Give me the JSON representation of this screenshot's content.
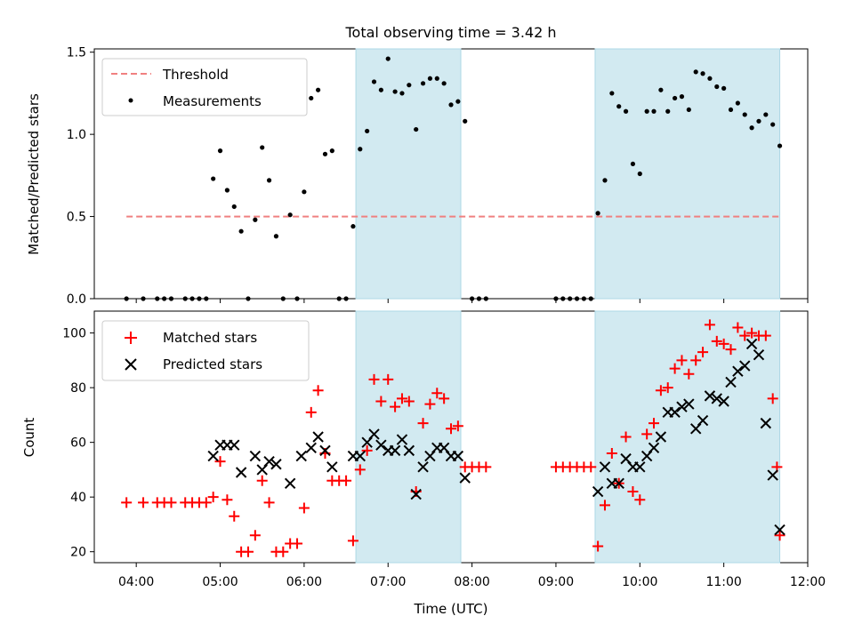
{
  "chart_data": {
    "title": "Total observing time = 3.42 h",
    "x_axis": {
      "label": "Time (UTC)",
      "unit": "hours UTC",
      "range": [
        "03:30",
        "12:00"
      ],
      "ticks": [
        "04:00",
        "05:00",
        "06:00",
        "07:00",
        "08:00",
        "09:00",
        "10:00",
        "11:00",
        "12:00"
      ]
    },
    "observing_windows": [
      {
        "start": "06:37",
        "end": "07:52"
      },
      {
        "start": "09:28",
        "end": "11:40"
      }
    ],
    "colors": {
      "window_fill": "#add8e6",
      "threshold": "#f08080",
      "measurements": "#000000",
      "matched": "#ff0000",
      "predicted": "#000000"
    },
    "panels": [
      {
        "id": "ratio",
        "type": "scatter",
        "ylabel": "Matched/Predicted stars",
        "ylim": [
          0,
          1.52
        ],
        "yticks": [
          "0.0",
          "0.5",
          "1.0",
          "1.5"
        ],
        "legend_position": "top-left",
        "threshold": {
          "name": "Threshold",
          "value": 0.5,
          "x_range": [
            "03:53",
            "11:40"
          ]
        },
        "series": [
          {
            "name": "Measurements",
            "marker": "dot",
            "points": [
              [
                "03:53",
                0.0
              ],
              [
                "04:05",
                0.0
              ],
              [
                "04:15",
                0.0
              ],
              [
                "04:20",
                0.0
              ],
              [
                "04:25",
                0.0
              ],
              [
                "04:35",
                0.0
              ],
              [
                "04:40",
                0.0
              ],
              [
                "04:45",
                0.0
              ],
              [
                "04:50",
                0.0
              ],
              [
                "04:55",
                0.73
              ],
              [
                "05:00",
                0.9
              ],
              [
                "05:05",
                0.66
              ],
              [
                "05:10",
                0.56
              ],
              [
                "05:15",
                0.41
              ],
              [
                "05:20",
                0.0
              ],
              [
                "05:25",
                0.48
              ],
              [
                "05:30",
                0.92
              ],
              [
                "05:35",
                0.72
              ],
              [
                "05:40",
                0.38
              ],
              [
                "05:45",
                0.0
              ],
              [
                "05:50",
                0.51
              ],
              [
                "05:55",
                0.0
              ],
              [
                "06:00",
                0.65
              ],
              [
                "06:05",
                1.22
              ],
              [
                "06:10",
                1.27
              ],
              [
                "06:15",
                0.88
              ],
              [
                "06:20",
                0.9
              ],
              [
                "06:25",
                0.0
              ],
              [
                "06:30",
                0.0
              ],
              [
                "06:35",
                0.44
              ],
              [
                "06:40",
                0.91
              ],
              [
                "06:45",
                1.02
              ],
              [
                "06:50",
                1.32
              ],
              [
                "06:55",
                1.27
              ],
              [
                "07:00",
                1.46
              ],
              [
                "07:05",
                1.26
              ],
              [
                "07:10",
                1.25
              ],
              [
                "07:15",
                1.3
              ],
              [
                "07:20",
                1.03
              ],
              [
                "07:25",
                1.31
              ],
              [
                "07:30",
                1.34
              ],
              [
                "07:35",
                1.34
              ],
              [
                "07:40",
                1.31
              ],
              [
                "07:45",
                1.18
              ],
              [
                "07:50",
                1.2
              ],
              [
                "07:55",
                1.08
              ],
              [
                "08:00",
                0.0
              ],
              [
                "08:05",
                0.0
              ],
              [
                "08:10",
                0.0
              ],
              [
                "09:00",
                0.0
              ],
              [
                "09:05",
                0.0
              ],
              [
                "09:10",
                0.0
              ],
              [
                "09:15",
                0.0
              ],
              [
                "09:20",
                0.0
              ],
              [
                "09:25",
                0.0
              ],
              [
                "09:30",
                0.52
              ],
              [
                "09:35",
                0.72
              ],
              [
                "09:40",
                1.25
              ],
              [
                "09:45",
                1.17
              ],
              [
                "09:50",
                1.14
              ],
              [
                "09:55",
                0.82
              ],
              [
                "10:00",
                0.76
              ],
              [
                "10:05",
                1.14
              ],
              [
                "10:10",
                1.14
              ],
              [
                "10:15",
                1.27
              ],
              [
                "10:20",
                1.14
              ],
              [
                "10:25",
                1.22
              ],
              [
                "10:30",
                1.23
              ],
              [
                "10:35",
                1.15
              ],
              [
                "10:40",
                1.38
              ],
              [
                "10:45",
                1.37
              ],
              [
                "10:50",
                1.34
              ],
              [
                "10:55",
                1.29
              ],
              [
                "11:00",
                1.28
              ],
              [
                "11:05",
                1.15
              ],
              [
                "11:10",
                1.19
              ],
              [
                "11:15",
                1.12
              ],
              [
                "11:20",
                1.04
              ],
              [
                "11:25",
                1.08
              ],
              [
                "11:30",
                1.12
              ],
              [
                "11:35",
                1.06
              ],
              [
                "11:40",
                0.93
              ]
            ]
          }
        ]
      },
      {
        "id": "counts",
        "type": "scatter",
        "ylabel": "Count",
        "ylim": [
          16,
          108
        ],
        "yticks": [
          "20",
          "40",
          "60",
          "80",
          "100"
        ],
        "legend_position": "top-left",
        "series": [
          {
            "name": "Matched stars",
            "marker": "plus",
            "points": [
              [
                "03:53",
                38
              ],
              [
                "04:05",
                38
              ],
              [
                "04:15",
                38
              ],
              [
                "04:20",
                38
              ],
              [
                "04:25",
                38
              ],
              [
                "04:35",
                38
              ],
              [
                "04:40",
                38
              ],
              [
                "04:45",
                38
              ],
              [
                "04:50",
                38
              ],
              [
                "04:55",
                40
              ],
              [
                "05:00",
                53
              ],
              [
                "05:05",
                39
              ],
              [
                "05:10",
                33
              ],
              [
                "05:15",
                20
              ],
              [
                "05:20",
                20
              ],
              [
                "05:25",
                26
              ],
              [
                "05:30",
                46
              ],
              [
                "05:35",
                38
              ],
              [
                "05:40",
                20
              ],
              [
                "05:45",
                20
              ],
              [
                "05:50",
                23
              ],
              [
                "05:55",
                23
              ],
              [
                "06:00",
                36
              ],
              [
                "06:05",
                71
              ],
              [
                "06:10",
                79
              ],
              [
                "06:15",
                56
              ],
              [
                "06:20",
                46
              ],
              [
                "06:25",
                46
              ],
              [
                "06:30",
                46
              ],
              [
                "06:35",
                24
              ],
              [
                "06:40",
                50
              ],
              [
                "06:45",
                57
              ],
              [
                "06:50",
                83
              ],
              [
                "06:55",
                75
              ],
              [
                "07:00",
                83
              ],
              [
                "07:05",
                73
              ],
              [
                "07:10",
                76
              ],
              [
                "07:15",
                75
              ],
              [
                "07:20",
                42
              ],
              [
                "07:25",
                67
              ],
              [
                "07:30",
                74
              ],
              [
                "07:35",
                78
              ],
              [
                "07:40",
                76
              ],
              [
                "07:45",
                65
              ],
              [
                "07:50",
                66
              ],
              [
                "07:55",
                51
              ],
              [
                "08:00",
                51
              ],
              [
                "08:05",
                51
              ],
              [
                "08:10",
                51
              ],
              [
                "09:00",
                51
              ],
              [
                "09:05",
                51
              ],
              [
                "09:10",
                51
              ],
              [
                "09:15",
                51
              ],
              [
                "09:20",
                51
              ],
              [
                "09:25",
                51
              ],
              [
                "09:30",
                22
              ],
              [
                "09:35",
                37
              ],
              [
                "09:40",
                56
              ],
              [
                "09:45",
                45
              ],
              [
                "09:50",
                62
              ],
              [
                "09:55",
                42
              ],
              [
                "10:00",
                39
              ],
              [
                "10:05",
                63
              ],
              [
                "10:10",
                67
              ],
              [
                "10:15",
                79
              ],
              [
                "10:20",
                80
              ],
              [
                "10:25",
                87
              ],
              [
                "10:30",
                90
              ],
              [
                "10:35",
                85
              ],
              [
                "10:40",
                90
              ],
              [
                "10:45",
                93
              ],
              [
                "10:50",
                103
              ],
              [
                "10:55",
                97
              ],
              [
                "11:00",
                96
              ],
              [
                "11:05",
                94
              ],
              [
                "11:10",
                102
              ],
              [
                "11:15",
                99
              ],
              [
                "11:20",
                100
              ],
              [
                "11:25",
                99
              ],
              [
                "11:30",
                99
              ],
              [
                "11:35",
                76
              ],
              [
                "11:38",
                51
              ],
              [
                "11:40",
                26
              ]
            ]
          },
          {
            "name": "Predicted stars",
            "marker": "x",
            "points": [
              [
                "04:55",
                55
              ],
              [
                "05:00",
                59
              ],
              [
                "05:05",
                59
              ],
              [
                "05:10",
                59
              ],
              [
                "05:15",
                49
              ],
              [
                "05:25",
                55
              ],
              [
                "05:30",
                50
              ],
              [
                "05:35",
                53
              ],
              [
                "05:40",
                52
              ],
              [
                "05:50",
                45
              ],
              [
                "05:58",
                55
              ],
              [
                "06:05",
                58
              ],
              [
                "06:10",
                62
              ],
              [
                "06:15",
                57
              ],
              [
                "06:20",
                51
              ],
              [
                "06:35",
                55
              ],
              [
                "06:40",
                55
              ],
              [
                "06:45",
                60
              ],
              [
                "06:50",
                63
              ],
              [
                "06:55",
                59
              ],
              [
                "07:00",
                57
              ],
              [
                "07:05",
                57
              ],
              [
                "07:10",
                61
              ],
              [
                "07:15",
                57
              ],
              [
                "07:20",
                41
              ],
              [
                "07:25",
                51
              ],
              [
                "07:30",
                55
              ],
              [
                "07:35",
                58
              ],
              [
                "07:40",
                58
              ],
              [
                "07:45",
                55
              ],
              [
                "07:50",
                55
              ],
              [
                "07:55",
                47
              ],
              [
                "09:30",
                42
              ],
              [
                "09:35",
                51
              ],
              [
                "09:40",
                45
              ],
              [
                "09:45",
                45
              ],
              [
                "09:50",
                54
              ],
              [
                "09:55",
                51
              ],
              [
                "10:00",
                51
              ],
              [
                "10:05",
                55
              ],
              [
                "10:10",
                58
              ],
              [
                "10:15",
                62
              ],
              [
                "10:20",
                71
              ],
              [
                "10:25",
                71
              ],
              [
                "10:30",
                73
              ],
              [
                "10:35",
                74
              ],
              [
                "10:40",
                65
              ],
              [
                "10:45",
                68
              ],
              [
                "10:50",
                77
              ],
              [
                "10:55",
                76
              ],
              [
                "11:00",
                75
              ],
              [
                "11:05",
                82
              ],
              [
                "11:10",
                86
              ],
              [
                "11:15",
                88
              ],
              [
                "11:20",
                96
              ],
              [
                "11:25",
                92
              ],
              [
                "11:30",
                67
              ],
              [
                "11:35",
                48
              ],
              [
                "11:40",
                28
              ]
            ]
          }
        ]
      }
    ]
  }
}
